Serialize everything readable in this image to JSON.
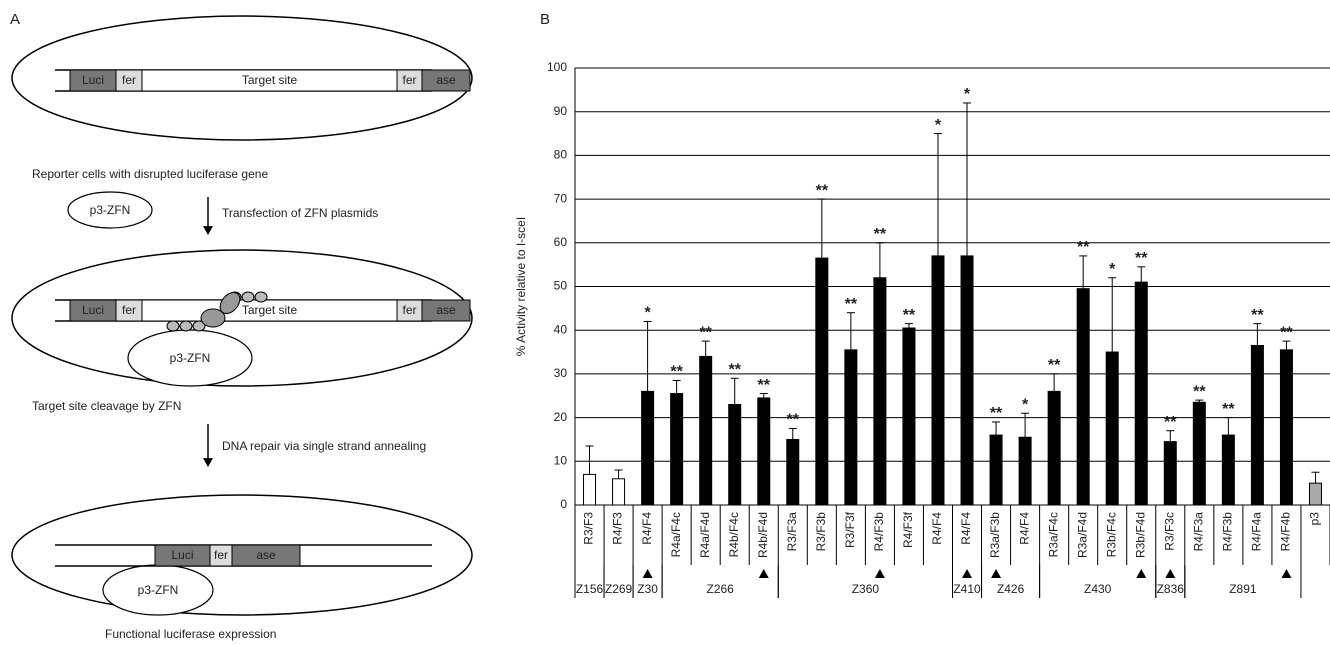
{
  "panel_a": {
    "label": "A",
    "step1": {
      "boxes": [
        "Luci",
        "fer",
        "Target site",
        "fer",
        "ase"
      ],
      "caption": "Reporter cells with disrupted luciferase gene"
    },
    "plasmid": "p3-ZFN",
    "transfection": "Transfection of ZFN plasmids",
    "step2": {
      "boxes": [
        "Luci",
        "fer",
        "Target site",
        "fer",
        "ase"
      ],
      "plasmid": "p3-ZFN",
      "caption": "Target site cleavage by ZFN"
    },
    "repair": "DNA repair via single strand annealing",
    "step3": {
      "boxes": [
        "Luci",
        "fer",
        "ase"
      ],
      "plasmid": "p3-ZFN",
      "caption": "Functional luciferase expression"
    }
  },
  "chart_data": {
    "type": "bar",
    "panel_label": "B",
    "y_label": "% Activity relative to I-sceI",
    "categories": [
      "R3/F3",
      "R4/F3",
      "R4/F4",
      "R4a/F4c",
      "R4a/F4d",
      "R4b/F4c",
      "R4b/F4d",
      "R3/F3a",
      "R3/F3b",
      "R3/F3f",
      "R4/F3b",
      "R4/F3f",
      "R4/F4",
      "R4/F4",
      "R3a/F3b",
      "R4/F4",
      "R3a/F4c",
      "R3a/F4d",
      "R3b/F4c",
      "R3b/F4d",
      "R3/F3c",
      "R4/F3a",
      "R4/F3b",
      "R4/F4a",
      "R4/F4b",
      "p3"
    ],
    "values": [
      7,
      6,
      26,
      25.5,
      34,
      23,
      24.5,
      15,
      56.5,
      35.5,
      52,
      40.5,
      57,
      57,
      16,
      15.5,
      26,
      49.5,
      35,
      51,
      14.5,
      23.5,
      16,
      36.5,
      35.5,
      5
    ],
    "errors": [
      6.5,
      2,
      16,
      3,
      3.5,
      6,
      1,
      2.5,
      13.5,
      8.5,
      8,
      1,
      28,
      35,
      3,
      5.5,
      4,
      7.5,
      17,
      3.5,
      2.5,
      0.5,
      4,
      5,
      2,
      2.5
    ],
    "colors": [
      "#ffffff",
      "#ffffff",
      "#000000",
      "#000000",
      "#000000",
      "#000000",
      "#000000",
      "#000000",
      "#000000",
      "#000000",
      "#000000",
      "#000000",
      "#000000",
      "#000000",
      "#000000",
      "#000000",
      "#000000",
      "#000000",
      "#000000",
      "#000000",
      "#000000",
      "#000000",
      "#000000",
      "#000000",
      "#000000",
      "#aaaaaa"
    ],
    "significance": [
      null,
      null,
      "*",
      "**",
      "**",
      "**",
      "**",
      "**",
      "**",
      "**",
      "**",
      "**",
      "*",
      "*",
      "**",
      "*",
      "**",
      "**",
      "*",
      "**",
      "**",
      "**",
      "**",
      "**",
      "**",
      null
    ],
    "triangle": [
      false,
      false,
      true,
      false,
      false,
      false,
      true,
      false,
      false,
      false,
      true,
      false,
      false,
      true,
      true,
      false,
      false,
      false,
      false,
      true,
      true,
      false,
      false,
      false,
      true,
      false
    ],
    "groups": [
      {
        "label": "Z156",
        "count": 1
      },
      {
        "label": "Z269",
        "count": 1
      },
      {
        "label": "Z30",
        "count": 1
      },
      {
        "label": "Z266",
        "count": 4
      },
      {
        "label": "Z360",
        "count": 6
      },
      {
        "label": "Z410",
        "count": 1
      },
      {
        "label": "Z426",
        "count": 2
      },
      {
        "label": "Z430",
        "count": 4
      },
      {
        "label": "Z836",
        "count": 1
      },
      {
        "label": "Z891",
        "count": 4
      }
    ],
    "ylim": [
      0,
      100
    ],
    "yticks": [
      0,
      10,
      20,
      30,
      40,
      50,
      60,
      70,
      80,
      90,
      100
    ],
    "grid": true
  }
}
